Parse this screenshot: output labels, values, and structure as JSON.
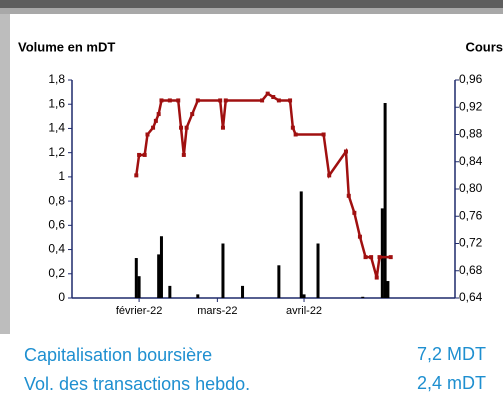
{
  "chart_data": {
    "type": "combo",
    "y_title": "Volume en mDT",
    "y2_title": "Cours",
    "xlim": [
      -24,
      113
    ],
    "xticks": [
      {
        "value": 0,
        "label": "février-22"
      },
      {
        "value": 28,
        "label": "mars-22"
      },
      {
        "value": 59,
        "label": "avril-22"
      }
    ],
    "ylim": [
      0,
      1.8
    ],
    "yticks": [
      {
        "value": 0,
        "label": "0"
      },
      {
        "value": 0.2,
        "label": "0,2"
      },
      {
        "value": 0.4,
        "label": "0,4"
      },
      {
        "value": 0.6,
        "label": "0,6"
      },
      {
        "value": 0.8,
        "label": "0,8"
      },
      {
        "value": 1,
        "label": "1"
      },
      {
        "value": 1.2,
        "label": "1,2"
      },
      {
        "value": 1.4,
        "label": "1,4"
      },
      {
        "value": 1.6,
        "label": "1,6"
      },
      {
        "value": 1.8,
        "label": "1,8"
      }
    ],
    "y2lim": [
      0.64,
      0.96
    ],
    "y2ticks": [
      {
        "value": 0.64,
        "label": "0,64"
      },
      {
        "value": 0.68,
        "label": "0,68"
      },
      {
        "value": 0.72,
        "label": "0,72"
      },
      {
        "value": 0.76,
        "label": "0,76"
      },
      {
        "value": 0.8,
        "label": "0,80"
      },
      {
        "value": 0.84,
        "label": "0,84"
      },
      {
        "value": 0.88,
        "label": "0,88"
      },
      {
        "value": 0.92,
        "label": "0,92"
      },
      {
        "value": 0.96,
        "label": "0,96"
      }
    ],
    "axis_color": "#1f2a6b",
    "series": [
      {
        "type": "bar",
        "color": "#000000",
        "x": [
          -1,
          0,
          7,
          8,
          11,
          21,
          30,
          37,
          50,
          58,
          59,
          64,
          80,
          87,
          88,
          89
        ],
        "values": [
          0.33,
          0.18,
          0.36,
          0.51,
          0.1,
          0.03,
          0.45,
          0.1,
          0.27,
          0.88,
          0.03,
          0.45,
          0.01,
          0.74,
          1.61,
          0.14
        ]
      },
      {
        "type": "line",
        "axis": "y2",
        "color": "#a01010",
        "x": [
          -1,
          0,
          2,
          3,
          5,
          6,
          7,
          8,
          11,
          14,
          15,
          16,
          17,
          19,
          21,
          29,
          30,
          31,
          44,
          46,
          48,
          50,
          54,
          55,
          56,
          66,
          68,
          74,
          75,
          77,
          79,
          81,
          83,
          85,
          86,
          90
        ],
        "values": [
          0.82,
          0.85,
          0.85,
          0.88,
          0.89,
          0.9,
          0.91,
          0.93,
          0.93,
          0.93,
          0.89,
          0.85,
          0.89,
          0.91,
          0.93,
          0.93,
          0.89,
          0.93,
          0.93,
          0.94,
          0.935,
          0.93,
          0.93,
          0.89,
          0.88,
          0.88,
          0.82,
          0.855,
          0.79,
          0.765,
          0.73,
          0.7,
          0.7,
          0.67,
          0.7,
          0.7
        ]
      }
    ]
  },
  "summary": {
    "rows": [
      {
        "label": "Capitalisation boursière",
        "value": "7,2 MDT"
      },
      {
        "label": "Vol. des transactions hebdo.",
        "value": "2,4 mDT"
      }
    ]
  }
}
